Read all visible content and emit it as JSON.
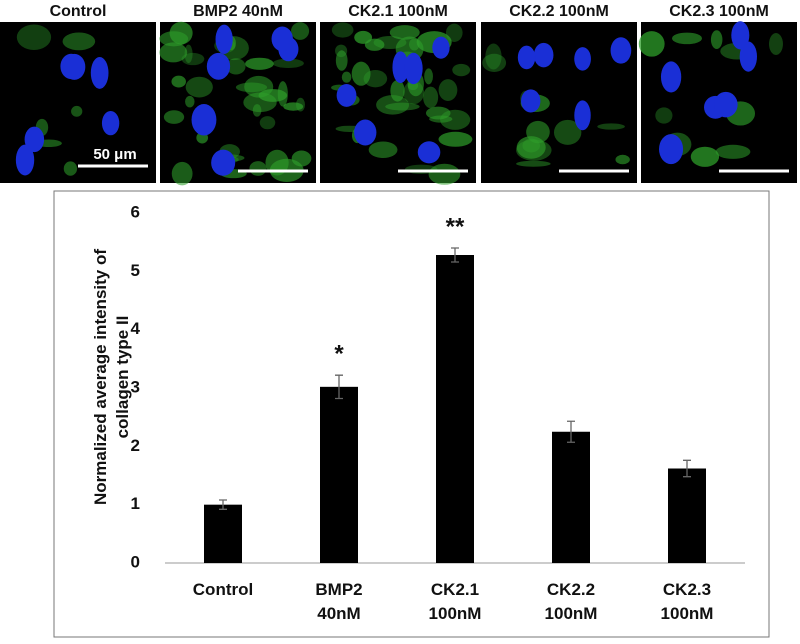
{
  "panels": [
    {
      "label": "Control"
    },
    {
      "label": "BMP2 40nM"
    },
    {
      "label": "CK2.1 100nM"
    },
    {
      "label": "CK2.2 100nM"
    },
    {
      "label": "CK2.3 100nM"
    }
  ],
  "scale_bar_label": "50 μm",
  "chart_data": {
    "type": "bar",
    "y_label": "Normalized average intensity of collagen type II",
    "categories": [
      "Control",
      "BMP2 40nM",
      "CK2.1 100nM",
      "CK2.2 100nM",
      "CK2.3 100nM"
    ],
    "values": [
      1.0,
      3.02,
      5.28,
      2.25,
      1.62
    ],
    "errors": [
      0.08,
      0.2,
      0.12,
      0.18,
      0.14
    ],
    "color": "#000000",
    "ylim": [
      0,
      6
    ],
    "yticks": [
      0,
      1,
      2,
      3,
      4,
      5,
      6
    ],
    "grid": false,
    "annotations": [
      {
        "text": "*",
        "category": "BMP2 40nM"
      },
      {
        "text": "**",
        "category": "CK2.1 100nM"
      }
    ]
  }
}
